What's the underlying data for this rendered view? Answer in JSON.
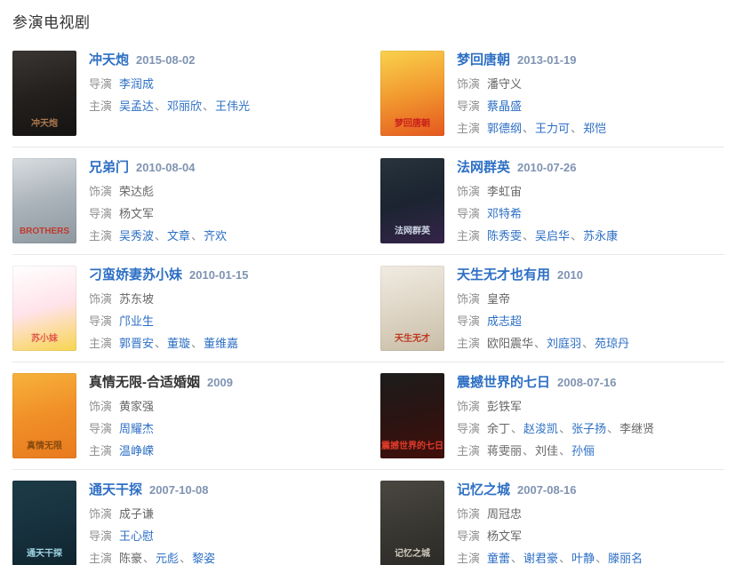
{
  "section": {
    "title": "参演电视剧"
  },
  "separator": "、",
  "colors": {
    "link": "#2d6fc4",
    "date": "#7f93b2",
    "role_label": "#919191",
    "plain_name": "#666666",
    "plain_title": "#333333",
    "divider": "#e7e7e7",
    "header": "#333333"
  },
  "items": [
    {
      "title": "冲天炮",
      "date": "2015-08-02",
      "title_is_link": true,
      "poster": {
        "label": "冲天炮",
        "label_color": "#a9764b",
        "colors": [
          "#3a3633",
          "#23201e",
          "#151311"
        ]
      },
      "roles": [
        {
          "label": "导演",
          "names": [
            {
              "text": "李润成",
              "link": true
            }
          ]
        },
        {
          "label": "主演",
          "names": [
            {
              "text": "吴孟达",
              "link": true
            },
            {
              "text": "邓丽欣",
              "link": true
            },
            {
              "text": "王伟光",
              "link": true
            }
          ]
        }
      ]
    },
    {
      "title": "梦回唐朝",
      "date": "2013-01-19",
      "title_is_link": true,
      "poster": {
        "label": "梦回唐朝",
        "label_color": "#c9201d",
        "colors": [
          "#f9d24d",
          "#f2992f",
          "#e4581f"
        ]
      },
      "roles": [
        {
          "label": "饰演",
          "names": [
            {
              "text": "潘守义",
              "link": false
            }
          ]
        },
        {
          "label": "导演",
          "names": [
            {
              "text": "蔡晶盛",
              "link": true
            }
          ]
        },
        {
          "label": "主演",
          "names": [
            {
              "text": "郭德纲",
              "link": true
            },
            {
              "text": "王力可",
              "link": true
            },
            {
              "text": "郑恺",
              "link": true
            }
          ]
        }
      ]
    },
    {
      "title": "兄弟门",
      "date": "2010-08-04",
      "title_is_link": true,
      "poster": {
        "label": "BROTHERS",
        "label_color": "#c0392b",
        "colors": [
          "#d9dde0",
          "#aab3ba",
          "#8d979e"
        ]
      },
      "roles": [
        {
          "label": "饰演",
          "names": [
            {
              "text": "荣达彪",
              "link": false
            }
          ]
        },
        {
          "label": "导演",
          "names": [
            {
              "text": "杨文军",
              "link": false
            }
          ]
        },
        {
          "label": "主演",
          "names": [
            {
              "text": "吴秀波",
              "link": true
            },
            {
              "text": "文章",
              "link": true
            },
            {
              "text": "齐欢",
              "link": true
            }
          ]
        }
      ]
    },
    {
      "title": "法网群英",
      "date": "2010-07-26",
      "title_is_link": true,
      "poster": {
        "label": "法网群英",
        "label_color": "#cdd6e4",
        "colors": [
          "#27333d",
          "#1b2430",
          "#35244a"
        ]
      },
      "roles": [
        {
          "label": "饰演",
          "names": [
            {
              "text": "李虹宙",
              "link": false
            }
          ]
        },
        {
          "label": "导演",
          "names": [
            {
              "text": "邓特希",
              "link": true
            }
          ]
        },
        {
          "label": "主演",
          "names": [
            {
              "text": "陈秀雯",
              "link": true
            },
            {
              "text": "吴启华",
              "link": true
            },
            {
              "text": "苏永康",
              "link": true
            }
          ]
        }
      ]
    },
    {
      "title": "刁蛮娇妻苏小妹",
      "date": "2010-01-15",
      "title_is_link": true,
      "poster": {
        "label": "苏小妹",
        "label_color": "#e2574c",
        "colors": [
          "#ffffff",
          "#ffe3ea",
          "#f7d54e"
        ]
      },
      "roles": [
        {
          "label": "饰演",
          "names": [
            {
              "text": "苏东坡",
              "link": false
            }
          ]
        },
        {
          "label": "导演",
          "names": [
            {
              "text": "邝业生",
              "link": true
            }
          ]
        },
        {
          "label": "主演",
          "names": [
            {
              "text": "郭晋安",
              "link": true
            },
            {
              "text": "董璇",
              "link": true
            },
            {
              "text": "董维嘉",
              "link": true
            }
          ]
        }
      ]
    },
    {
      "title": "天生无才也有用",
      "date": "2010",
      "title_is_link": true,
      "poster": {
        "label": "天生无才",
        "label_color": "#bf3a22",
        "colors": [
          "#f0ebe2",
          "#ded5c5",
          "#c9bda7"
        ]
      },
      "roles": [
        {
          "label": "饰演",
          "names": [
            {
              "text": "皇帝",
              "link": false
            }
          ]
        },
        {
          "label": "导演",
          "names": [
            {
              "text": "成志超",
              "link": true
            }
          ]
        },
        {
          "label": "主演",
          "names": [
            {
              "text": "欧阳震华",
              "link": false
            },
            {
              "text": "刘庭羽",
              "link": true
            },
            {
              "text": "苑琼丹",
              "link": true
            }
          ]
        }
      ]
    },
    {
      "title": "真情无限-合适婚姻",
      "date": "2009",
      "title_is_link": false,
      "poster": {
        "label": "真情无限",
        "label_color": "#8a4a0e",
        "colors": [
          "#f7b23c",
          "#f08f27",
          "#e87a1e"
        ]
      },
      "roles": [
        {
          "label": "饰演",
          "names": [
            {
              "text": "黄家强",
              "link": false
            }
          ]
        },
        {
          "label": "导演",
          "names": [
            {
              "text": "周耀杰",
              "link": true
            }
          ]
        },
        {
          "label": "主演",
          "names": [
            {
              "text": "温峥嵘",
              "link": true
            }
          ]
        }
      ]
    },
    {
      "title": "震撼世界的七日",
      "date": "2008-07-16",
      "title_is_link": true,
      "poster": {
        "label": "震撼世界的七日",
        "label_color": "#e03a2a",
        "colors": [
          "#1c1c1c",
          "#2a1412",
          "#420f0a"
        ]
      },
      "roles": [
        {
          "label": "饰演",
          "names": [
            {
              "text": "彭铁军",
              "link": false
            }
          ]
        },
        {
          "label": "导演",
          "names": [
            {
              "text": "余丁",
              "link": false
            },
            {
              "text": "赵浚凯",
              "link": true
            },
            {
              "text": "张子扬",
              "link": true
            },
            {
              "text": "李继贤",
              "link": false
            }
          ]
        },
        {
          "label": "主演",
          "names": [
            {
              "text": "蒋雯丽",
              "link": false
            },
            {
              "text": "刘佳",
              "link": false
            },
            {
              "text": "孙俪",
              "link": true
            }
          ]
        }
      ]
    },
    {
      "title": "通天干探",
      "date": "2007-10-08",
      "title_is_link": true,
      "poster": {
        "label": "通天干探",
        "label_color": "#9fd4e4",
        "colors": [
          "#1d3b46",
          "#17323e",
          "#0f242e"
        ]
      },
      "roles": [
        {
          "label": "饰演",
          "names": [
            {
              "text": "成子谦",
              "link": false
            }
          ]
        },
        {
          "label": "导演",
          "names": [
            {
              "text": "王心慰",
              "link": true
            }
          ]
        },
        {
          "label": "主演",
          "names": [
            {
              "text": "陈豪",
              "link": false
            },
            {
              "text": "元彪",
              "link": true
            },
            {
              "text": "黎姿",
              "link": true
            }
          ]
        }
      ]
    },
    {
      "title": "记忆之城",
      "date": "2007-08-16",
      "title_is_link": true,
      "poster": {
        "label": "记忆之城",
        "label_color": "#cfc9bb",
        "colors": [
          "#4a4741",
          "#3a3833",
          "#2b2a26"
        ]
      },
      "roles": [
        {
          "label": "饰演",
          "names": [
            {
              "text": "周冠忠",
              "link": false
            }
          ]
        },
        {
          "label": "导演",
          "names": [
            {
              "text": "杨文军",
              "link": false
            }
          ]
        },
        {
          "label": "主演",
          "names": [
            {
              "text": "童蕾",
              "link": true
            },
            {
              "text": "谢君豪",
              "link": true
            },
            {
              "text": "叶静",
              "link": true
            },
            {
              "text": "滕丽名",
              "link": true
            }
          ]
        }
      ]
    }
  ]
}
